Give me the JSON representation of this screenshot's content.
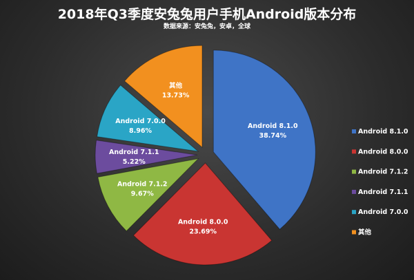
{
  "chart_data": {
    "type": "pie",
    "title": "2018年Q3季度安兔兔用户手机Android版本分布",
    "subtitle": "数据来源：安兔兔，安卓，全球",
    "slices": [
      {
        "label": "Android 8.1.0",
        "value": 38.74,
        "value_label": "38.74%",
        "color": "#3f74c6"
      },
      {
        "label": "Android 8.0.0",
        "value": 23.69,
        "value_label": "23.69%",
        "color": "#c93532"
      },
      {
        "label": "Android 7.1.2",
        "value": 9.67,
        "value_label": "9.67%",
        "color": "#8fb844"
      },
      {
        "label": "Android 7.1.1",
        "value": 5.22,
        "value_label": "5.22%",
        "color": "#6c4c9e"
      },
      {
        "label": "Android 7.0.0",
        "value": 8.96,
        "value_label": "8.96%",
        "color": "#2aa5c6"
      },
      {
        "label": "其他",
        "value": 13.73,
        "value_label": "13.73%",
        "color": "#f2901f"
      }
    ],
    "start_angle_deg": 0,
    "direction": "clockwise",
    "exploded": true,
    "legend_position": "right",
    "background": "#2c2c2c"
  }
}
